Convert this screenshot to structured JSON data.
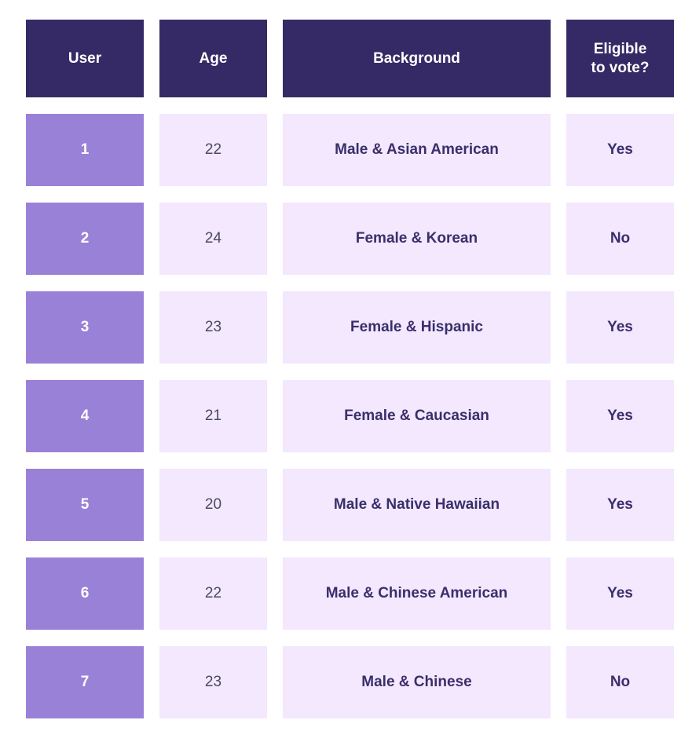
{
  "headers": {
    "user": "User",
    "age": "Age",
    "background": "Background",
    "eligible": "Eligible\nto vote?"
  },
  "rows": [
    {
      "user": "1",
      "age": "22",
      "background": "Male & Asian American",
      "eligible": "Yes"
    },
    {
      "user": "2",
      "age": "24",
      "background": "Female & Korean",
      "eligible": "No"
    },
    {
      "user": "3",
      "age": "23",
      "background": "Female & Hispanic",
      "eligible": "Yes"
    },
    {
      "user": "4",
      "age": "21",
      "background": "Female & Caucasian",
      "eligible": "Yes"
    },
    {
      "user": "5",
      "age": "20",
      "background": "Male & Native Hawaiian",
      "eligible": "Yes"
    },
    {
      "user": "6",
      "age": "22",
      "background": "Male & Chinese American",
      "eligible": "Yes"
    },
    {
      "user": "7",
      "age": "23",
      "background": "Male & Chinese",
      "eligible": "No"
    }
  ],
  "colors": {
    "header_bg": "#362a66",
    "user_cell_bg": "#9a81d8",
    "light_cell_bg": "#f3e8fe",
    "text_dark": "#3a2f6b"
  }
}
